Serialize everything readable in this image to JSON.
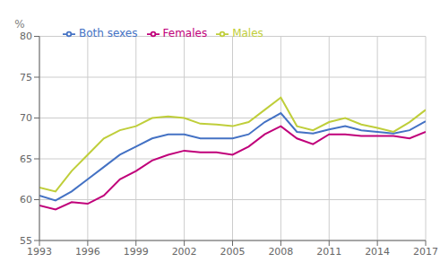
{
  "chart_data": {
    "type": "line",
    "ylabel": "%",
    "x": [
      1993,
      1994,
      1995,
      1996,
      1997,
      1998,
      1999,
      2000,
      2001,
      2002,
      2003,
      2004,
      2005,
      2006,
      2007,
      2008,
      2009,
      2010,
      2011,
      2012,
      2013,
      2014,
      2015,
      2016,
      2017
    ],
    "series": [
      {
        "name": "Both sexes",
        "color": "#4472c4",
        "values": [
          60.5,
          59.9,
          61.0,
          62.5,
          64.0,
          65.5,
          66.5,
          67.5,
          68.0,
          68.0,
          67.5,
          67.5,
          67.5,
          68.0,
          69.5,
          70.6,
          68.3,
          68.1,
          68.6,
          69.0,
          68.5,
          68.3,
          68.1,
          68.5,
          69.6
        ]
      },
      {
        "name": "Males",
        "color": "#bfce3a",
        "values": [
          61.5,
          61.0,
          63.5,
          65.5,
          67.5,
          68.5,
          69.0,
          70.0,
          70.2,
          70.0,
          69.3,
          69.2,
          69.0,
          69.5,
          71.0,
          72.5,
          69.0,
          68.5,
          69.5,
          70.0,
          69.2,
          68.8,
          68.3,
          69.5,
          71.0
        ]
      },
      {
        "name": "Females",
        "color": "#c0007a",
        "values": [
          59.3,
          58.8,
          59.7,
          59.5,
          60.5,
          62.5,
          63.5,
          64.8,
          65.5,
          66.0,
          65.8,
          65.8,
          65.5,
          66.5,
          68.0,
          69.0,
          67.5,
          66.8,
          68.0,
          68.0,
          67.8,
          67.8,
          67.8,
          67.5,
          68.3
        ]
      }
    ],
    "xlim": [
      1993,
      2017
    ],
    "xticks": [
      1993,
      1996,
      1999,
      2002,
      2005,
      2008,
      2011,
      2014,
      2017
    ],
    "ylim": [
      55,
      80
    ],
    "yticks": [
      55,
      60,
      65,
      70,
      75,
      80
    ],
    "grid": true,
    "legend": "upper left"
  }
}
